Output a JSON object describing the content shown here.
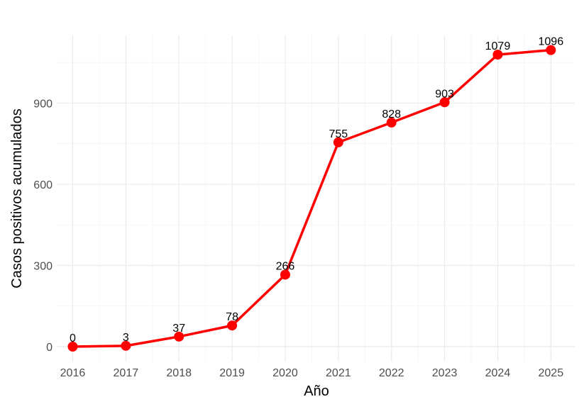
{
  "chart_data": {
    "type": "line",
    "title": "",
    "xlabel": "Año",
    "ylabel": "Casos positivos acumulados",
    "x": [
      2016,
      2017,
      2018,
      2019,
      2020,
      2021,
      2022,
      2023,
      2024,
      2025
    ],
    "series": [
      {
        "values": [
          0,
          3,
          37,
          78,
          266,
          755,
          828,
          903,
          1079,
          1096
        ],
        "color": "#ff0000"
      }
    ],
    "data_labels": [
      "0",
      "3",
      "37",
      "78",
      "266",
      "755",
      "828",
      "903",
      "1079",
      "1096"
    ],
    "x_ticks": [
      "2016",
      "2017",
      "2018",
      "2019",
      "2020",
      "2021",
      "2022",
      "2023",
      "2024",
      "2025"
    ],
    "y_ticks": [
      0,
      300,
      600,
      900
    ],
    "y_tick_labels": [
      "0",
      "300",
      "600",
      "900"
    ],
    "ylim": [
      -55,
      1150
    ],
    "xlim": [
      2015.7,
      2025.45
    ],
    "grid": true,
    "legend": "none"
  }
}
